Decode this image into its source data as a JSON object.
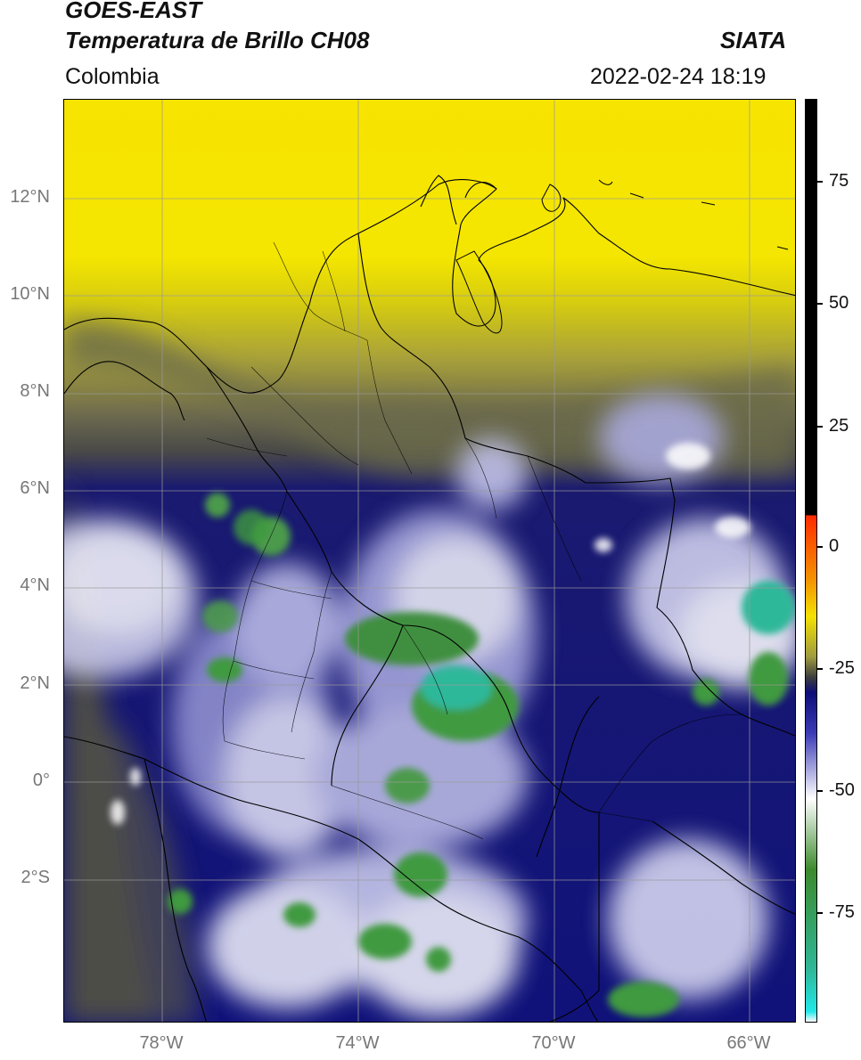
{
  "header": {
    "title_line1": "GOES-EAST",
    "title_line2": "Temperatura de Brillo CH08",
    "agency": "SIATA",
    "region": "Colombia",
    "datetime": "2022-02-24 18:19"
  },
  "map": {
    "lat_labels": [
      "12°N",
      "10°N",
      "8°N",
      "6°N",
      "4°N",
      "2°N",
      "0°",
      "2°S"
    ],
    "lon_labels": [
      "78°W",
      "74°W",
      "70°W",
      "66°W"
    ],
    "colors": {
      "warm_yellow": "#f4e400",
      "dry_olive": "#5c5c46",
      "cold_navy": "#10127a",
      "very_cold_white": "#f2f2fa",
      "deep_convection_green": "#3d9a3d",
      "coldest_teal": "#2fb89a",
      "border": "#000000"
    }
  },
  "colorbar": {
    "tick_labels": [
      "75",
      "50",
      "25",
      "0",
      "-25",
      "-50",
      "-75"
    ],
    "stops": [
      {
        "color": "#000000",
        "value": 90
      },
      {
        "color": "#000000",
        "value": 8
      },
      {
        "color": "#ff2a00",
        "value": 8
      },
      {
        "color": "#f49500",
        "value": -5
      },
      {
        "color": "#f4e100",
        "value": -12
      },
      {
        "color": "#9f9b40",
        "value": -20
      },
      {
        "color": "#3d3d3d",
        "value": -24
      },
      {
        "color": "#0d0d78",
        "value": -27
      },
      {
        "color": "#3a3ab6",
        "value": -35
      },
      {
        "color": "#ffffff",
        "value": -48
      },
      {
        "color": "#3c8a2c",
        "value": -62
      },
      {
        "color": "#2fb89a",
        "value": -82
      },
      {
        "color": "#22e8e8",
        "value": -90
      },
      {
        "color": "#ffffff",
        "value": -92
      }
    ]
  }
}
